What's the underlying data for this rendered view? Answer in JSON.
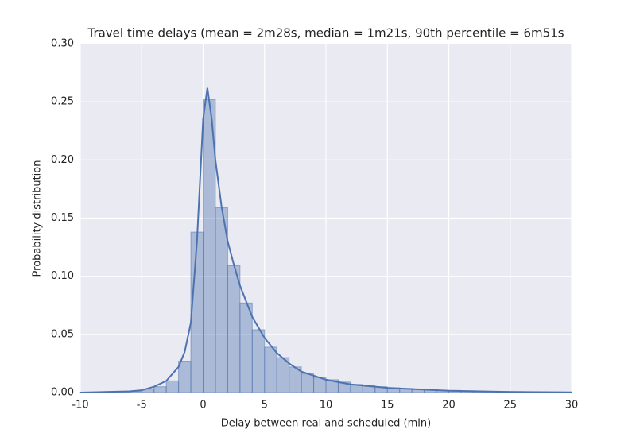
{
  "chart_data": {
    "type": "histogram",
    "title": "Travel time delays (mean = 2m28s, median = 1m21s, 90th percentile = 6m51s",
    "x_label": "Delay between real and scheduled (min)",
    "y_label": "Probability distribution",
    "bins": [
      -10,
      -9,
      -8,
      -7,
      -6,
      -5,
      -4,
      -3,
      -2,
      -1,
      0,
      1,
      2,
      3,
      4,
      5,
      6,
      7,
      8,
      9,
      10,
      11,
      12,
      13,
      14,
      15,
      16,
      17,
      18,
      19,
      20,
      21,
      22,
      23,
      24,
      25,
      26,
      27,
      28,
      29,
      30
    ],
    "values": [
      0.0002,
      0.0003,
      0.0005,
      0.0008,
      0.001,
      0.003,
      0.005,
      0.01,
      0.027,
      0.138,
      0.252,
      0.159,
      0.109,
      0.077,
      0.054,
      0.039,
      0.03,
      0.022,
      0.016,
      0.013,
      0.011,
      0.009,
      0.007,
      0.006,
      0.005,
      0.004,
      0.0035,
      0.003,
      0.0025,
      0.002,
      0.0018,
      0.0015,
      0.0012,
      0.001,
      0.0009,
      0.0008,
      0.0006,
      0.0005,
      0.0004,
      0.0003
    ],
    "color": "#4c72b0",
    "kde": {
      "color": "#4c72b0",
      "x": [
        -10,
        -8,
        -6,
        -5,
        -4,
        -3,
        -2,
        -1.5,
        -1,
        -0.5,
        0,
        0.35,
        0.7,
        1,
        1.5,
        2,
        2.5,
        3,
        4,
        5,
        6,
        7,
        8,
        10,
        12,
        15,
        20,
        25,
        30
      ],
      "values": [
        0,
        0.0005,
        0.001,
        0.002,
        0.005,
        0.01,
        0.022,
        0.035,
        0.06,
        0.13,
        0.235,
        0.262,
        0.235,
        0.2,
        0.16,
        0.13,
        0.11,
        0.092,
        0.065,
        0.047,
        0.034,
        0.025,
        0.018,
        0.011,
        0.007,
        0.004,
        0.0015,
        0.0005,
        0.0002
      ]
    },
    "xlim": [
      -10,
      30
    ],
    "xticks": [
      -10,
      -5,
      0,
      5,
      10,
      15,
      20,
      25,
      30
    ],
    "ylim": [
      0,
      0.3
    ],
    "yticks": [
      {
        "value": 0,
        "label": "0.00"
      },
      0.05,
      {
        "value": 0.1,
        "label": "0.10"
      },
      0.15,
      {
        "value": 0.2,
        "label": "0.20"
      },
      0.25,
      {
        "value": 0.3,
        "label": "0.30"
      }
    ],
    "grid": true
  }
}
